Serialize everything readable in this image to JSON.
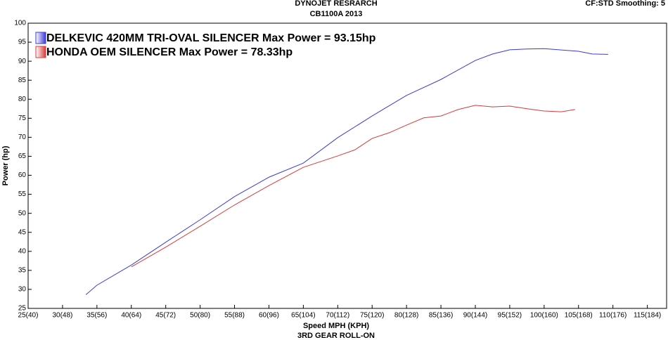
{
  "chart_data": {
    "type": "line",
    "title": "DYNOJET RESRARCH",
    "subtitle": "CB1100A 2013",
    "corner_note": "CF:STD Smoothing: 5",
    "x_label": "Speed MPH (KPH)",
    "x_label_2": "3RD GEAR ROLL-ON",
    "y_label": "Power (hp)",
    "xlim": [
      25,
      117.8
    ],
    "ylim": [
      25,
      100
    ],
    "xticks": [
      {
        "value": 25,
        "label": "25(40)"
      },
      {
        "value": 30,
        "label": "30(48)"
      },
      {
        "value": 35,
        "label": "35(56)"
      },
      {
        "value": 40,
        "label": "40(64)"
      },
      {
        "value": 45,
        "label": "45(72)"
      },
      {
        "value": 50,
        "label": "50(80)"
      },
      {
        "value": 55,
        "label": "55(88)"
      },
      {
        "value": 60,
        "label": "60(96)"
      },
      {
        "value": 65,
        "label": "65(104)"
      },
      {
        "value": 70,
        "label": "70(112)"
      },
      {
        "value": 75,
        "label": "75(120)"
      },
      {
        "value": 80,
        "label": "80(128)"
      },
      {
        "value": 85,
        "label": "85(136)"
      },
      {
        "value": 90,
        "label": "90(144)"
      },
      {
        "value": 95,
        "label": "95(152)"
      },
      {
        "value": 100,
        "label": "100(160)"
      },
      {
        "value": 105,
        "label": "105(168)"
      },
      {
        "value": 110,
        "label": "110(176)"
      },
      {
        "value": 115,
        "label": "115(184)"
      }
    ],
    "yticks": [
      25,
      30,
      35,
      40,
      45,
      50,
      55,
      60,
      65,
      70,
      75,
      80,
      85,
      90,
      95,
      100
    ],
    "legend": "upper left",
    "series": [
      {
        "name": "DELKEVIC 420MM TRI-OVAL SILENCER Max Power = 93.15hp",
        "color": "#3a3ad8",
        "x": [
          33.4,
          35,
          40,
          45,
          50,
          55,
          60,
          65,
          70,
          75,
          80,
          85,
          90,
          92.5,
          95,
          97.5,
          100,
          105,
          107,
          109.3
        ],
        "values": [
          28.6,
          31.1,
          36.4,
          42.4,
          48.3,
          54.4,
          59.5,
          63.2,
          69.9,
          75.6,
          81.0,
          85.2,
          90.2,
          91.9,
          93.0,
          93.2,
          93.3,
          92.6,
          91.9,
          91.8
        ]
      },
      {
        "name": "HONDA OEM SILENCER Max Power = 78.33hp",
        "color": "#d83a3a",
        "x": [
          40,
          45,
          50,
          55,
          60,
          65,
          70,
          72.5,
          75,
          77.5,
          80,
          82.5,
          85,
          87.5,
          90,
          92.5,
          95,
          97.5,
          100,
          102.5,
          104.5
        ],
        "values": [
          35.9,
          41.1,
          46.6,
          52.2,
          57.3,
          62.1,
          65.1,
          66.7,
          69.7,
          71.2,
          73.2,
          75.1,
          75.6,
          77.3,
          78.4,
          78.0,
          78.2,
          77.5,
          76.9,
          76.7,
          77.3
        ]
      }
    ]
  }
}
